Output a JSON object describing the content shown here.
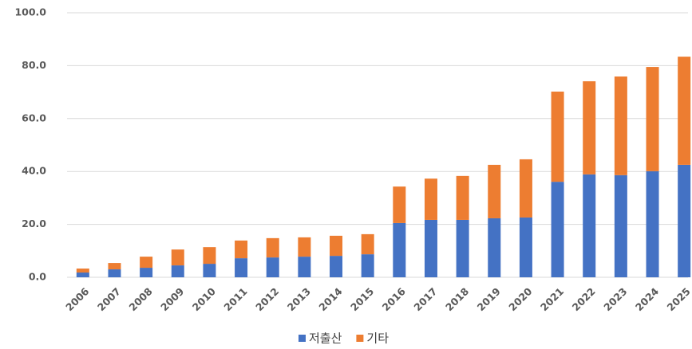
{
  "chart_data": {
    "type": "stacked-bar",
    "categories": [
      "2006",
      "2007",
      "2008",
      "2009",
      "2010",
      "2011",
      "2012",
      "2013",
      "2014",
      "2015",
      "2016",
      "2017",
      "2018",
      "2019",
      "2020",
      "2021",
      "2022",
      "2023",
      "2024",
      "2025"
    ],
    "series": [
      {
        "name": "저출산",
        "color": "#4472c4",
        "values": [
          1.8,
          3.0,
          3.6,
          4.5,
          5.1,
          7.2,
          7.5,
          7.8,
          8.1,
          8.7,
          20.5,
          21.7,
          21.7,
          22.3,
          22.6,
          36.1,
          38.9,
          38.6,
          40.1,
          42.5
        ]
      },
      {
        "name": "기타",
        "color": "#ed7d31",
        "values": [
          1.5,
          2.4,
          4.2,
          6.0,
          6.3,
          6.7,
          7.3,
          7.3,
          7.6,
          7.6,
          13.8,
          15.6,
          16.6,
          20.2,
          22.0,
          34.1,
          35.2,
          37.3,
          39.4,
          40.9
        ]
      }
    ],
    "ylim": [
      0,
      100
    ],
    "yticks": [
      {
        "value": 0,
        "label": "0.0"
      },
      {
        "value": 20,
        "label": "20.0"
      },
      {
        "value": 40,
        "label": "40.0"
      },
      {
        "value": 60,
        "label": "60.0"
      },
      {
        "value": 80,
        "label": "80.0"
      },
      {
        "value": 100,
        "label": "100.0"
      }
    ],
    "grid": true,
    "legend": "bottom"
  }
}
